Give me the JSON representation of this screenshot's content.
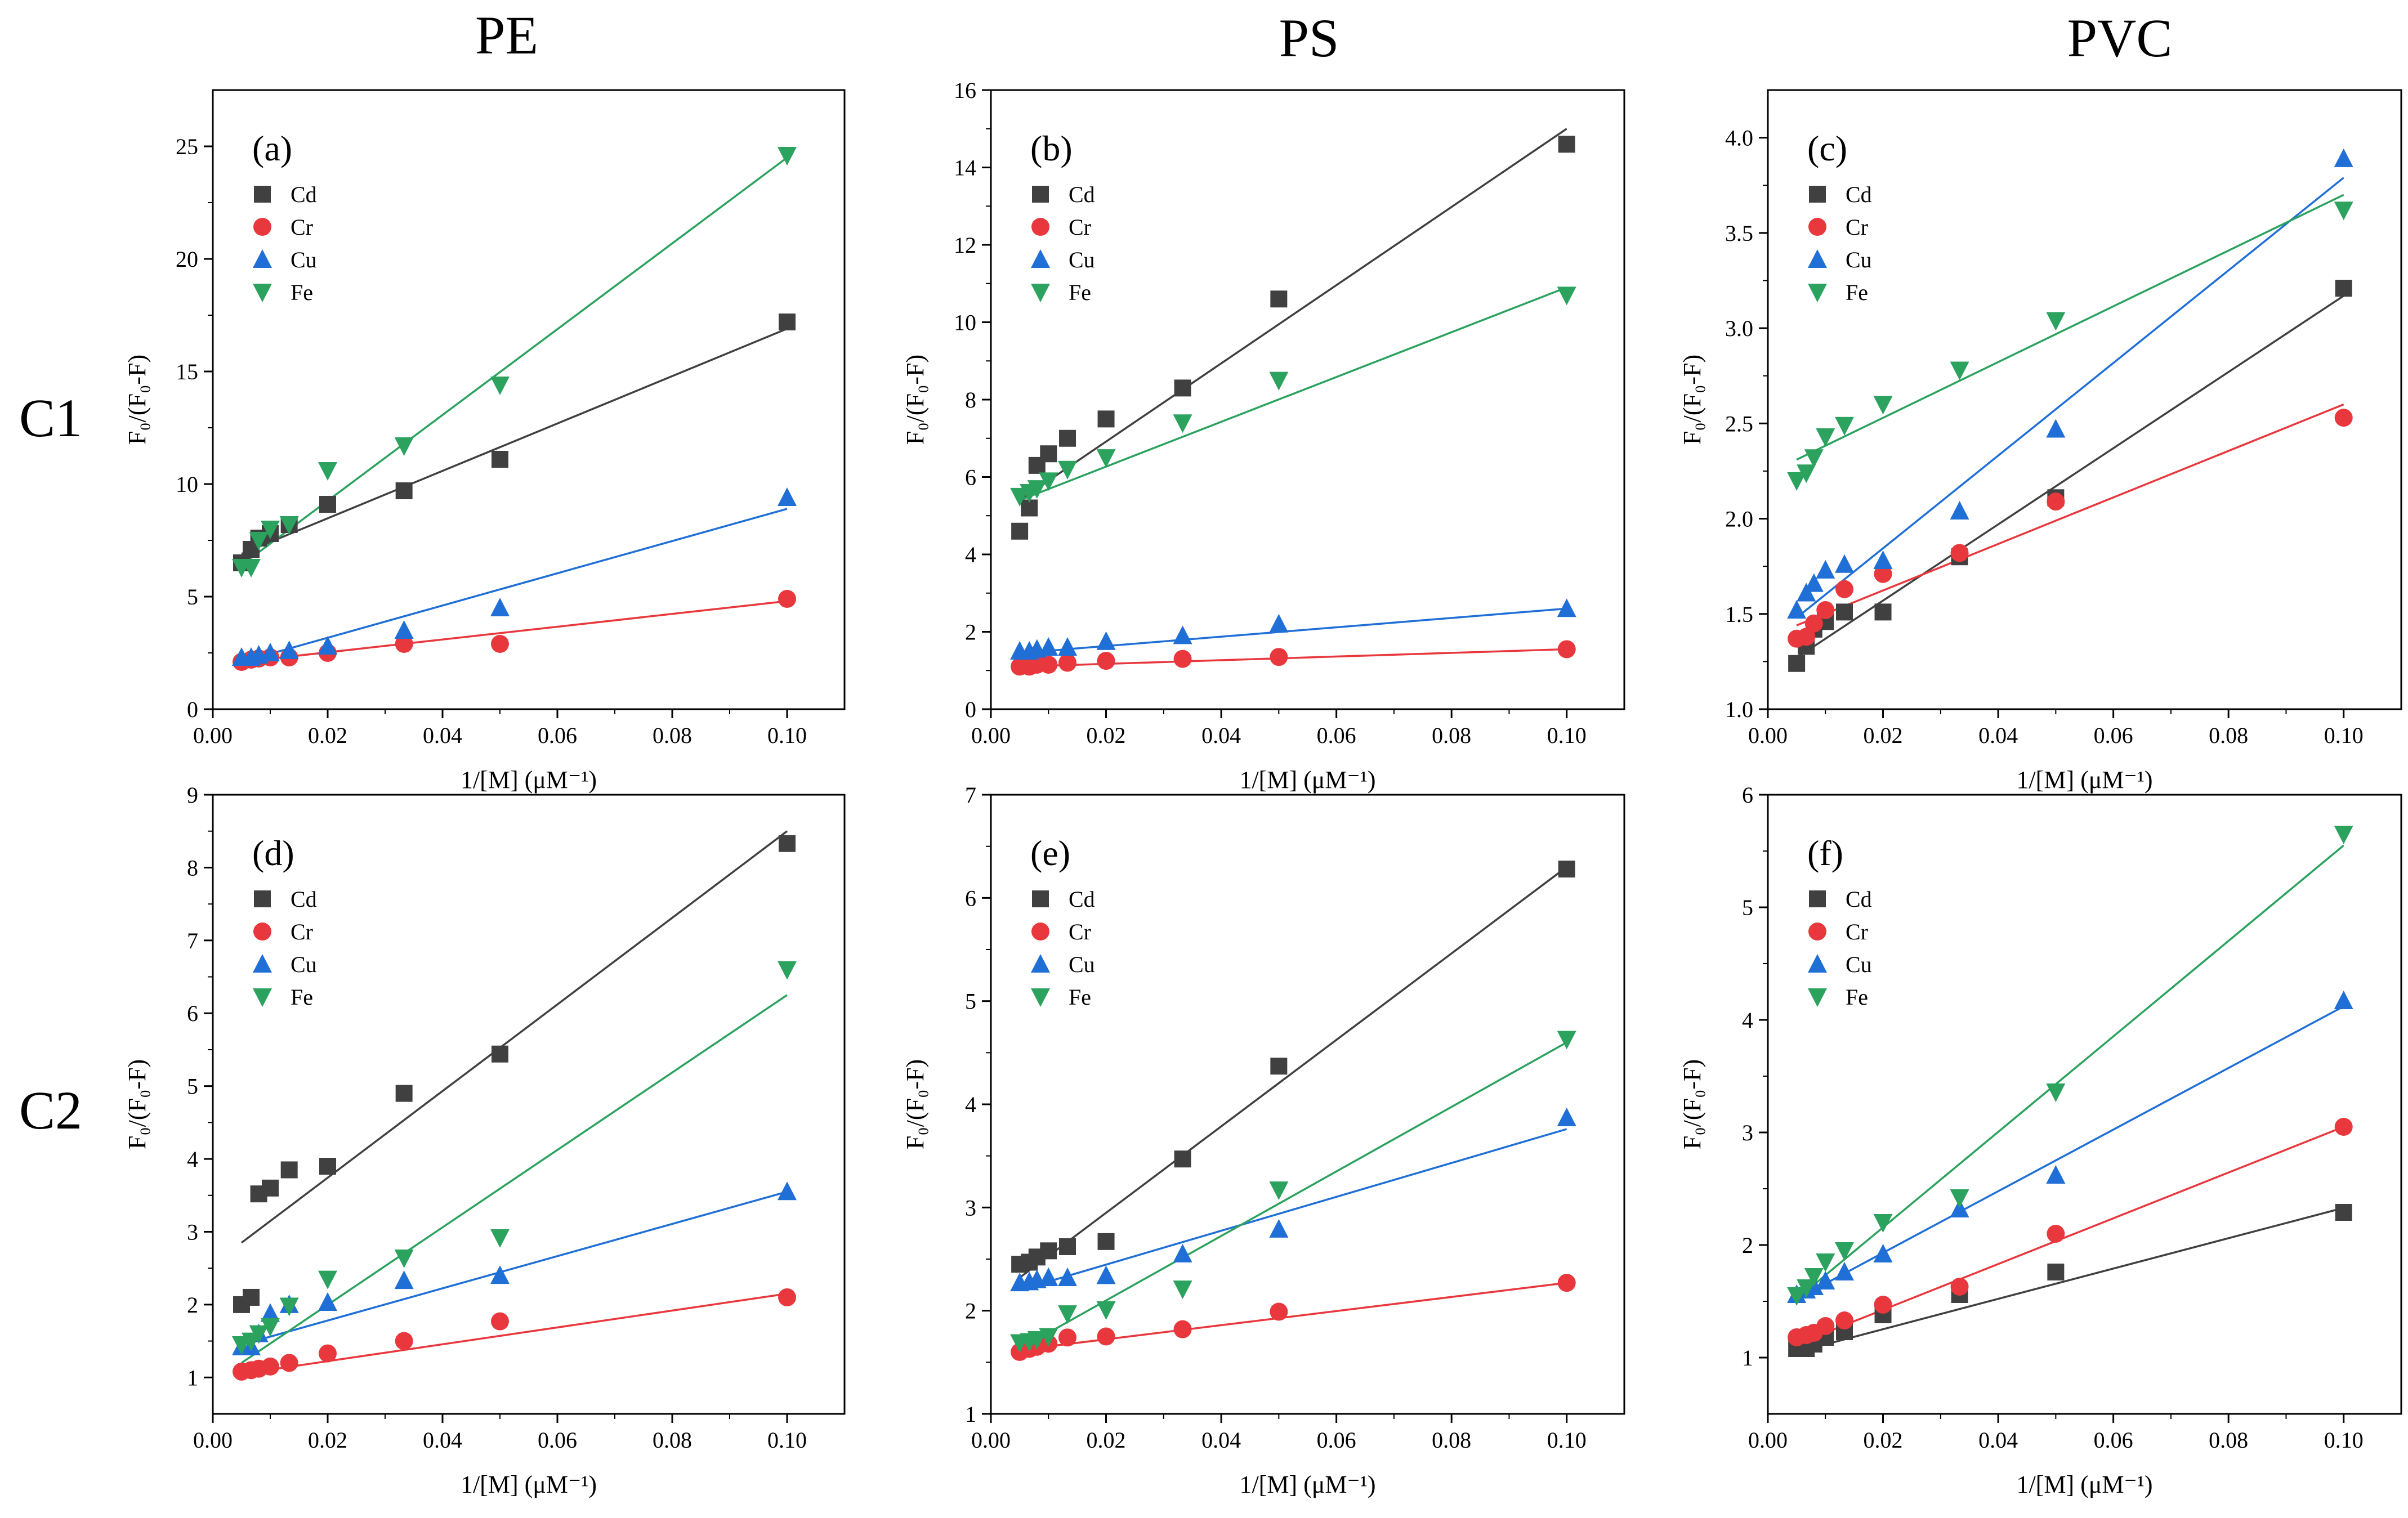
{
  "column_titles": [
    "PE",
    "PS",
    "PVC"
  ],
  "row_labels": [
    "C1",
    "C2"
  ],
  "series_style": {
    "Cd": {
      "color": "#404040",
      "marker": "square"
    },
    "Cr": {
      "color": "#e8383d",
      "marker": "circle"
    },
    "Cu": {
      "color": "#1f6fd6",
      "marker": "triangle-up"
    },
    "Fe": {
      "color": "#2ca25f",
      "marker": "triangle-down"
    }
  },
  "chart_data": [
    {
      "type": "scatter",
      "panel_label": "(a)",
      "xlabel": "1/[M] (μM⁻¹)",
      "ylabel": "F₀/(F₀-F)",
      "xlim": [
        0,
        0.11
      ],
      "ylim": [
        0,
        27.5
      ],
      "xticks": [
        0.0,
        0.02,
        0.04,
        0.06,
        0.08,
        0.1
      ],
      "xtick_labels": [
        "0.00",
        "0.02",
        "0.04",
        "0.06",
        "0.08",
        "0.10"
      ],
      "yticks": [
        0,
        5,
        10,
        15,
        20,
        25
      ],
      "ytick_labels": [
        "0",
        "5",
        "10",
        "15",
        "20",
        "25"
      ],
      "x": [
        0.005,
        0.00667,
        0.008,
        0.01,
        0.0133,
        0.02,
        0.0333,
        0.05,
        0.1
      ],
      "series": [
        {
          "name": "Cd",
          "values": [
            6.5,
            7.1,
            7.6,
            7.8,
            8.2,
            9.1,
            9.7,
            11.1,
            17.2
          ],
          "fit": [
            0.005,
            6.9,
            0.1,
            16.9
          ]
        },
        {
          "name": "Cr",
          "values": [
            2.1,
            2.2,
            2.25,
            2.3,
            2.3,
            2.5,
            2.9,
            2.9,
            4.9
          ],
          "fit": [
            0.005,
            2.1,
            0.1,
            4.8
          ]
        },
        {
          "name": "Cu",
          "values": [
            2.3,
            2.3,
            2.4,
            2.5,
            2.6,
            2.8,
            3.5,
            4.5,
            9.4
          ],
          "fit": [
            0.005,
            2.1,
            0.1,
            8.9
          ]
        },
        {
          "name": "Fe",
          "values": [
            6.3,
            6.3,
            7.5,
            8.0,
            8.2,
            10.6,
            11.7,
            14.4,
            24.6
          ],
          "fit": [
            0.005,
            6.4,
            0.1,
            24.5
          ]
        }
      ]
    },
    {
      "type": "scatter",
      "panel_label": "(b)",
      "xlabel": "1/[M] (μM⁻¹)",
      "ylabel": "F₀/(F₀-F)",
      "xlim": [
        0,
        0.11
      ],
      "ylim": [
        0,
        16
      ],
      "xticks": [
        0.0,
        0.02,
        0.04,
        0.06,
        0.08,
        0.1
      ],
      "xtick_labels": [
        "0.00",
        "0.02",
        "0.04",
        "0.06",
        "0.08",
        "0.10"
      ],
      "yticks": [
        0,
        2,
        4,
        6,
        8,
        10,
        12,
        14,
        16
      ],
      "ytick_labels": [
        "0",
        "2",
        "4",
        "6",
        "8",
        "10",
        "12",
        "14",
        "16"
      ],
      "x": [
        0.005,
        0.00667,
        0.008,
        0.01,
        0.0133,
        0.02,
        0.0333,
        0.05,
        0.1
      ],
      "series": [
        {
          "name": "Cd",
          "values": [
            4.6,
            5.2,
            6.3,
            6.6,
            7.0,
            7.5,
            8.3,
            10.6,
            14.6
          ],
          "fit": [
            0.005,
            5.4,
            0.1,
            15.0
          ]
        },
        {
          "name": "Cr",
          "values": [
            1.1,
            1.1,
            1.15,
            1.15,
            1.2,
            1.25,
            1.3,
            1.35,
            1.55
          ],
          "fit": [
            0.005,
            1.1,
            0.1,
            1.55
          ]
        },
        {
          "name": "Cu",
          "values": [
            1.5,
            1.5,
            1.55,
            1.6,
            1.6,
            1.75,
            1.9,
            2.2,
            2.6
          ],
          "fit": [
            0.005,
            1.45,
            0.1,
            2.6
          ]
        },
        {
          "name": "Fe",
          "values": [
            5.5,
            5.6,
            5.7,
            5.9,
            6.2,
            6.5,
            7.4,
            8.5,
            10.7
          ],
          "fit": [
            0.005,
            5.4,
            0.1,
            10.9
          ]
        }
      ]
    },
    {
      "type": "scatter",
      "panel_label": "(c)",
      "xlabel": "1/[M] (μM⁻¹)",
      "ylabel": "F₀/(F₀-F)",
      "xlim": [
        0,
        0.11
      ],
      "ylim": [
        1.0,
        4.25
      ],
      "xticks": [
        0.0,
        0.02,
        0.04,
        0.06,
        0.08,
        0.1
      ],
      "xtick_labels": [
        "0.00",
        "0.02",
        "0.04",
        "0.06",
        "0.08",
        "0.10"
      ],
      "yticks": [
        1.0,
        1.5,
        2.0,
        2.5,
        3.0,
        3.5,
        4.0
      ],
      "ytick_labels": [
        "1.0",
        "1.5",
        "2.0",
        "2.5",
        "3.0",
        "3.5",
        "4.0"
      ],
      "x": [
        0.005,
        0.00667,
        0.008,
        0.01,
        0.0133,
        0.02,
        0.0333,
        0.05,
        0.1
      ],
      "series": [
        {
          "name": "Cd",
          "values": [
            1.24,
            1.33,
            1.42,
            1.46,
            1.51,
            1.51,
            1.8,
            2.11,
            3.21
          ],
          "fit": [
            0.005,
            1.27,
            0.1,
            3.17
          ]
        },
        {
          "name": "Cr",
          "values": [
            1.37,
            1.38,
            1.45,
            1.52,
            1.63,
            1.71,
            1.82,
            2.09,
            2.53
          ],
          "fit": [
            0.005,
            1.44,
            0.1,
            2.6
          ]
        },
        {
          "name": "Cu",
          "values": [
            1.52,
            1.61,
            1.66,
            1.73,
            1.76,
            1.78,
            2.04,
            2.47,
            3.89
          ],
          "fit": [
            0.005,
            1.48,
            0.1,
            3.79
          ]
        },
        {
          "name": "Fe",
          "values": [
            2.2,
            2.24,
            2.32,
            2.43,
            2.49,
            2.6,
            2.78,
            3.04,
            3.62
          ],
          "fit": [
            0.005,
            2.31,
            0.1,
            3.7
          ]
        }
      ]
    },
    {
      "type": "scatter",
      "panel_label": "(d)",
      "xlabel": "1/[M] (μM⁻¹)",
      "ylabel": "F₀/(F₀-F)",
      "xlim": [
        0,
        0.11
      ],
      "ylim": [
        0.5,
        9.0
      ],
      "xticks": [
        0.0,
        0.02,
        0.04,
        0.06,
        0.08,
        0.1
      ],
      "xtick_labels": [
        "0.00",
        "0.02",
        "0.04",
        "0.06",
        "0.08",
        "0.10"
      ],
      "yticks": [
        1,
        2,
        3,
        4,
        5,
        6,
        7,
        8,
        9
      ],
      "ytick_labels": [
        "1",
        "2",
        "3",
        "4",
        "5",
        "6",
        "7",
        "8",
        "9"
      ],
      "x": [
        0.005,
        0.00667,
        0.008,
        0.01,
        0.0133,
        0.02,
        0.0333,
        0.05,
        0.1
      ],
      "series": [
        {
          "name": "Cd",
          "values": [
            2.0,
            2.1,
            3.52,
            3.6,
            3.85,
            3.9,
            4.9,
            5.44,
            8.33
          ],
          "fit": [
            0.005,
            2.85,
            0.1,
            8.5
          ]
        },
        {
          "name": "Cr",
          "values": [
            1.08,
            1.1,
            1.12,
            1.15,
            1.2,
            1.33,
            1.5,
            1.77,
            2.1
          ],
          "fit": [
            0.005,
            1.05,
            0.1,
            2.15
          ]
        },
        {
          "name": "Cu",
          "values": [
            1.42,
            1.42,
            1.6,
            1.88,
            2.0,
            2.03,
            2.33,
            2.4,
            3.55
          ],
          "fit": [
            0.005,
            1.45,
            0.1,
            3.55
          ]
        },
        {
          "name": "Fe",
          "values": [
            1.45,
            1.5,
            1.6,
            1.7,
            1.98,
            2.35,
            2.64,
            2.92,
            6.6
          ],
          "fit": [
            0.005,
            1.2,
            0.1,
            6.25
          ]
        }
      ]
    },
    {
      "type": "scatter",
      "panel_label": "(e)",
      "xlabel": "1/[M] (μM⁻¹)",
      "ylabel": "F₀/(F₀-F)",
      "xlim": [
        0,
        0.11
      ],
      "ylim": [
        1,
        7
      ],
      "xticks": [
        0.0,
        0.02,
        0.04,
        0.06,
        0.08,
        0.1
      ],
      "xtick_labels": [
        "0.00",
        "0.02",
        "0.04",
        "0.06",
        "0.08",
        "0.10"
      ],
      "yticks": [
        1,
        2,
        3,
        4,
        5,
        6,
        7
      ],
      "ytick_labels": [
        "1",
        "2",
        "3",
        "4",
        "5",
        "6",
        "7"
      ],
      "x": [
        0.005,
        0.00667,
        0.008,
        0.01,
        0.0133,
        0.02,
        0.0333,
        0.05,
        0.1
      ],
      "series": [
        {
          "name": "Cd",
          "values": [
            2.45,
            2.47,
            2.52,
            2.58,
            2.62,
            2.67,
            3.47,
            4.37,
            6.28
          ],
          "fit": [
            0.005,
            2.32,
            0.1,
            6.3
          ]
        },
        {
          "name": "Cr",
          "values": [
            1.6,
            1.63,
            1.65,
            1.68,
            1.74,
            1.75,
            1.82,
            1.99,
            2.27
          ],
          "fit": [
            0.005,
            1.62,
            0.1,
            2.27
          ]
        },
        {
          "name": "Cu",
          "values": [
            2.27,
            2.28,
            2.3,
            2.32,
            2.32,
            2.34,
            2.55,
            2.79,
            3.87
          ],
          "fit": [
            0.005,
            2.2,
            0.1,
            3.76
          ]
        },
        {
          "name": "Fe",
          "values": [
            1.69,
            1.7,
            1.72,
            1.75,
            1.97,
            2.01,
            2.21,
            3.17,
            4.63
          ],
          "fit": [
            0.005,
            1.63,
            0.1,
            4.6
          ]
        }
      ]
    },
    {
      "type": "scatter",
      "panel_label": "(f)",
      "xlabel": "1/[M] (μM⁻¹)",
      "ylabel": "F₀/(F₀-F)",
      "xlim": [
        0,
        0.11
      ],
      "ylim": [
        0.5,
        6.0
      ],
      "xticks": [
        0.0,
        0.02,
        0.04,
        0.06,
        0.08,
        0.1
      ],
      "xtick_labels": [
        "0.00",
        "0.02",
        "0.04",
        "0.06",
        "0.08",
        "0.10"
      ],
      "yticks": [
        1,
        2,
        3,
        4,
        5,
        6
      ],
      "ytick_labels": [
        "1",
        "2",
        "3",
        "4",
        "5",
        "6"
      ],
      "x": [
        0.005,
        0.00667,
        0.008,
        0.01,
        0.0133,
        0.02,
        0.0333,
        0.05,
        0.1
      ],
      "series": [
        {
          "name": "Cd",
          "values": [
            1.08,
            1.08,
            1.12,
            1.18,
            1.23,
            1.38,
            1.56,
            1.76,
            2.29
          ],
          "fit": [
            0.005,
            1.05,
            0.1,
            2.33
          ]
        },
        {
          "name": "Cr",
          "values": [
            1.18,
            1.2,
            1.22,
            1.28,
            1.33,
            1.47,
            1.63,
            2.1,
            3.05
          ],
          "fit": [
            0.005,
            1.12,
            0.1,
            3.05
          ]
        },
        {
          "name": "Cu",
          "values": [
            1.56,
            1.6,
            1.63,
            1.68,
            1.76,
            1.92,
            2.32,
            2.62,
            4.17
          ],
          "fit": [
            0.005,
            1.52,
            0.1,
            4.12
          ]
        },
        {
          "name": "Fe",
          "values": [
            1.55,
            1.62,
            1.72,
            1.85,
            1.95,
            2.2,
            2.42,
            3.36,
            5.65
          ],
          "fit": [
            0.005,
            1.52,
            0.1,
            5.55
          ]
        }
      ]
    }
  ]
}
